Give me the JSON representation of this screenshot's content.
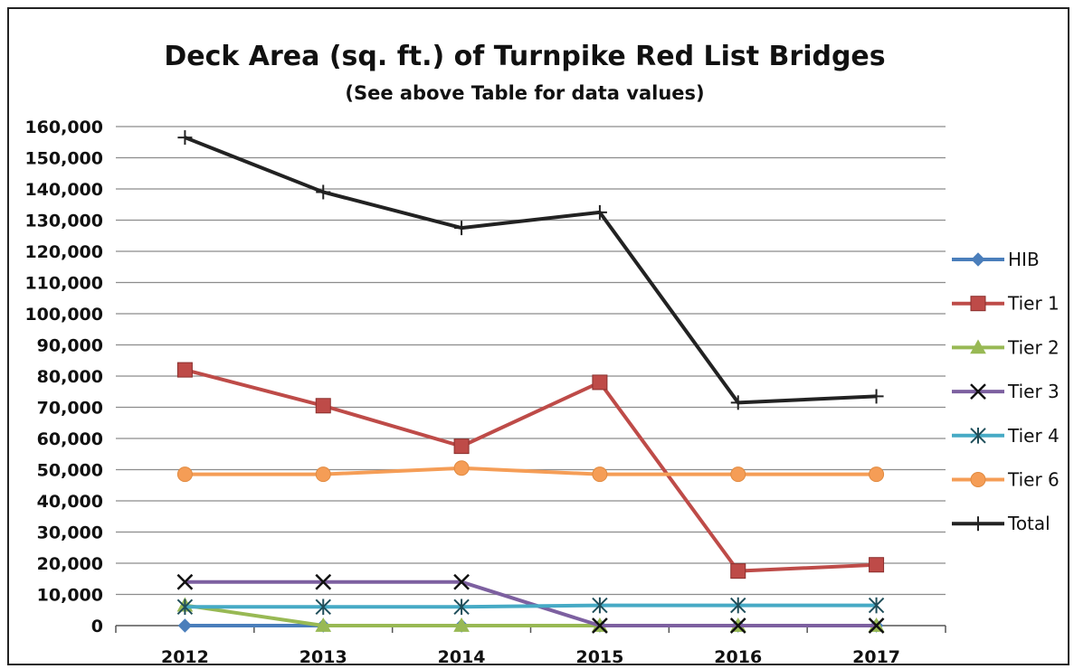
{
  "chart_data": {
    "type": "line",
    "title": "Deck Area (sq. ft.) of Turnpike Red List Bridges",
    "subtitle": "(See above Table for data values)",
    "categories": [
      "2012",
      "2013",
      "2014",
      "2015",
      "2016",
      "2017"
    ],
    "ylim": [
      0,
      160000
    ],
    "yticks": [
      0,
      10000,
      20000,
      30000,
      40000,
      50000,
      60000,
      70000,
      80000,
      90000,
      100000,
      110000,
      120000,
      130000,
      140000,
      150000,
      160000
    ],
    "ytick_labels": [
      "0",
      "10,000",
      "20,000",
      "30,000",
      "40,000",
      "50,000",
      "60,000",
      "70,000",
      "80,000",
      "90,000",
      "100,000",
      "110,000",
      "120,000",
      "130,000",
      "140,000",
      "150,000",
      "160,000"
    ],
    "grid": true,
    "legend_position": "right",
    "series": [
      {
        "name": "HIB",
        "values": [
          0,
          0,
          0,
          0,
          0,
          0
        ],
        "color": "#4a7ebb",
        "marker": "diamond"
      },
      {
        "name": "Tier 1",
        "values": [
          82000,
          70500,
          57500,
          78000,
          17500,
          19500
        ],
        "color": "#be4b48",
        "marker": "square"
      },
      {
        "name": "Tier 2",
        "values": [
          6500,
          0,
          0,
          0,
          0,
          0
        ],
        "color": "#98b954",
        "marker": "triangle"
      },
      {
        "name": "Tier 3",
        "values": [
          14000,
          14000,
          14000,
          0,
          0,
          0
        ],
        "color": "#7d60a0",
        "marker": "x"
      },
      {
        "name": "Tier 4",
        "values": [
          6000,
          6000,
          6000,
          6500,
          6500,
          6500
        ],
        "color": "#46aac5",
        "marker": "star"
      },
      {
        "name": "Tier 6",
        "values": [
          48500,
          48500,
          50500,
          48500,
          48500,
          48500
        ],
        "color": "#f59d56",
        "marker": "circle"
      },
      {
        "name": "Total",
        "values": [
          156500,
          139000,
          127500,
          132500,
          71500,
          73500
        ],
        "color": "#222222",
        "marker": "plus"
      }
    ]
  }
}
